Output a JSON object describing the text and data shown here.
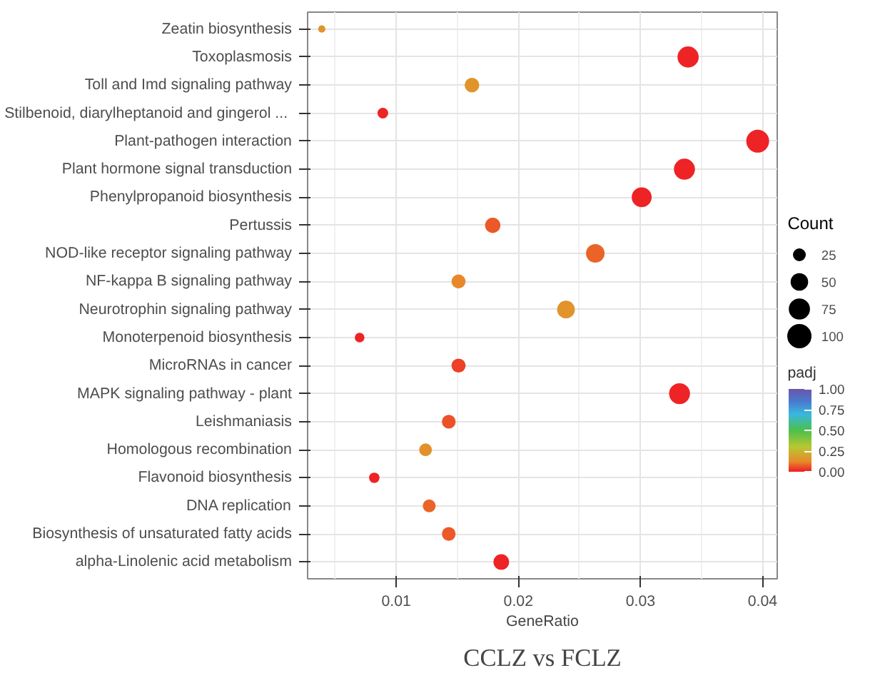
{
  "chart_data": {
    "type": "bubble",
    "title": "CCLZ vs FCLZ",
    "xlabel": "GeneRatio",
    "categories": [
      "Zeatin biosynthesis",
      "Toxoplasmosis",
      "Toll and Imd signaling pathway",
      "Stilbenoid, diarylheptanoid and gingerol  ...",
      "Plant-pathogen interaction",
      "Plant hormone signal transduction",
      "Phenylpropanoid biosynthesis",
      "Pertussis",
      "NOD-like receptor signaling pathway",
      "NF-kappa B signaling pathway",
      "Neurotrophin signaling pathway",
      "Monoterpenoid biosynthesis",
      "MicroRNAs in cancer",
      "MAPK signaling pathway - plant",
      "Leishmaniasis",
      "Homologous recombination",
      "Flavonoid biosynthesis",
      "DNA replication",
      "Biosynthesis of unsaturated fatty acids",
      "alpha-Linolenic acid metabolism"
    ],
    "orientation": "horizontal",
    "values": [
      0.0039,
      0.0339,
      0.0162,
      0.0089,
      0.0396,
      0.0336,
      0.0301,
      0.0179,
      0.0263,
      0.0151,
      0.0239,
      0.007,
      0.0151,
      0.0332,
      0.0143,
      0.0124,
      0.0082,
      0.0127,
      0.0143,
      0.0186
    ],
    "sizes": [
      10,
      86,
      41,
      22,
      100,
      85,
      76,
      45,
      66,
      38,
      60,
      18,
      38,
      84,
      36,
      31,
      21,
      32,
      36,
      47
    ],
    "size_legend": [
      25,
      50,
      75,
      100
    ],
    "cvalues": [
      0.15,
      0.01,
      0.15,
      0.01,
      0.01,
      0.01,
      0.01,
      0.07,
      0.08,
      0.12,
      0.15,
      0.01,
      0.04,
      0.01,
      0.06,
      0.14,
      0.01,
      0.08,
      0.07,
      0.01
    ],
    "clim": [
      0,
      1
    ],
    "cticks": [
      {
        "value": 0,
        "label": "0.00"
      },
      {
        "value": 0.25,
        "label": "0.25"
      },
      {
        "value": 0.5,
        "label": "0.50"
      },
      {
        "value": 0.75,
        "label": "0.75"
      },
      {
        "value": 1,
        "label": "1.00"
      }
    ],
    "legend_title": "Count",
    "clabel": "padj",
    "xlim": [
      0.00274,
      0.0412
    ],
    "xticks": [
      0.01,
      0.02,
      0.03,
      0.04
    ],
    "grid": true,
    "marker": "circle"
  }
}
